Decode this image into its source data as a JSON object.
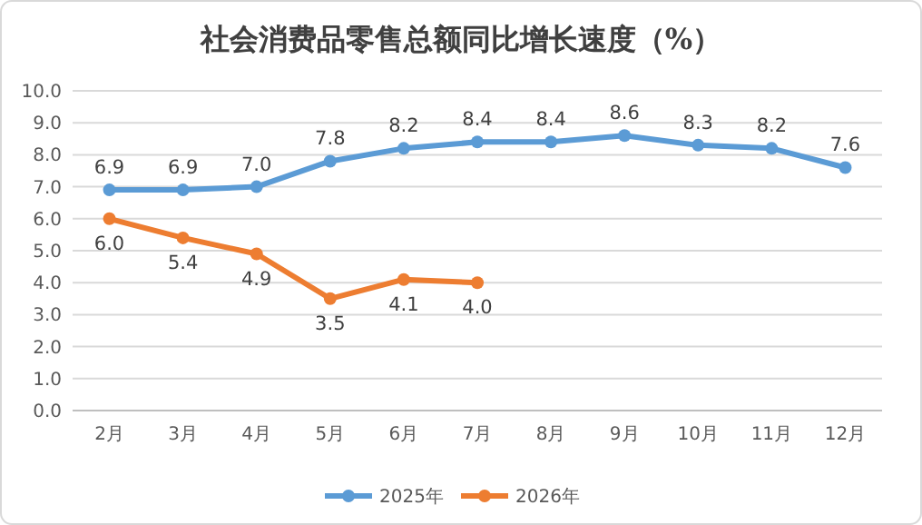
{
  "chart_data": {
    "type": "line",
    "title": "社会消费品零售总额同比增长速度（%）",
    "categories": [
      "2月",
      "3月",
      "4月",
      "5月",
      "6月",
      "7月",
      "8月",
      "9月",
      "10月",
      "11月",
      "12月"
    ],
    "series": [
      {
        "name": "2025年",
        "color": "#5b9bd5",
        "values": [
          6.9,
          6.9,
          7.0,
          7.8,
          8.2,
          8.4,
          8.4,
          8.6,
          8.3,
          8.2,
          7.6
        ],
        "value_labels": [
          "6.9",
          "6.9",
          "7.0",
          "7.8",
          "8.2",
          "8.4",
          "8.4",
          "8.6",
          "8.3",
          "8.2",
          "7.6"
        ]
      },
      {
        "name": "2026年",
        "color": "#ed7d31",
        "values": [
          6.0,
          5.4,
          4.9,
          3.5,
          4.1,
          4.0,
          null,
          null,
          null,
          null,
          null
        ],
        "value_labels": [
          "6.0",
          "5.4",
          "4.9",
          "3.5",
          "4.1",
          "4.0",
          null,
          null,
          null,
          null,
          null
        ]
      }
    ],
    "ylim": [
      0,
      10
    ],
    "yticks": [
      {
        "value": 0,
        "label": "0.0"
      },
      {
        "value": 1,
        "label": "1.0"
      },
      {
        "value": 2,
        "label": "2.0"
      },
      {
        "value": 3,
        "label": "3.0"
      },
      {
        "value": 4,
        "label": "4.0"
      },
      {
        "value": 5,
        "label": "5.0"
      },
      {
        "value": 6,
        "label": "6.0"
      },
      {
        "value": 7,
        "label": "7.0"
      },
      {
        "value": 8,
        "label": "8.0"
      },
      {
        "value": 9,
        "label": "9.0"
      },
      {
        "value": 10,
        "label": "10.0"
      }
    ],
    "grid": "y",
    "legend": "bottom",
    "marker": "circle",
    "line_style": "solid"
  }
}
